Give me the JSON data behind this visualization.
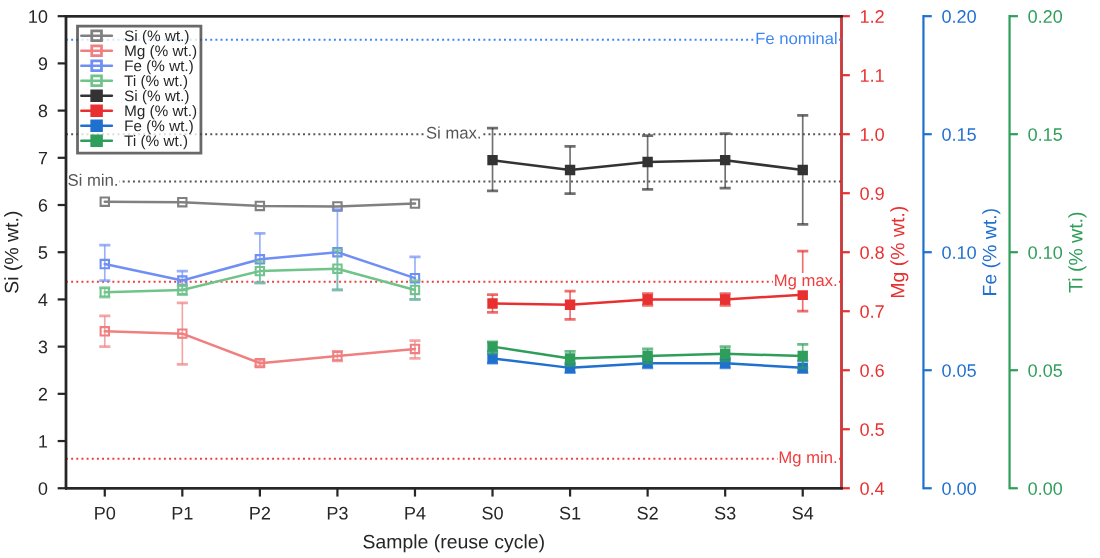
{
  "chart_data": {
    "type": "line",
    "xlabel": "Sample (reuse cycle)",
    "ylabel": "Si (% wt.)",
    "y2label": "Mg (% wt.)",
    "y3label": "Fe (% wt.)",
    "annotations": [
      "Ti (% wt.)"
    ],
    "categories": [
      "P0",
      "P1",
      "P2",
      "P3",
      "P4",
      "S0",
      "S1",
      "S2",
      "S3",
      "S4"
    ],
    "ylim": [
      0,
      10
    ],
    "yticks": [
      0,
      1,
      2,
      3,
      4,
      5,
      6,
      7,
      8,
      9,
      10
    ],
    "y2lim": [
      0.4,
      1.2
    ],
    "y2ticks": [
      {
        "value": 0.4,
        "label": "0.4"
      },
      {
        "value": 0.5,
        "label": "0.5"
      },
      {
        "value": 0.6,
        "label": "0.6"
      },
      {
        "value": 0.7,
        "label": "0.7"
      },
      {
        "value": 0.8,
        "label": "0.8"
      },
      {
        "value": 0.9,
        "label": "0.9"
      },
      {
        "value": 1.0,
        "label": "1.0"
      },
      {
        "value": 1.1,
        "label": "1.1"
      },
      {
        "value": 1.2,
        "label": "1.2"
      }
    ],
    "y3lim": [
      0,
      0.2
    ],
    "y3ticks": [
      {
        "value": 0,
        "label": "0.00"
      },
      {
        "value": 0.05,
        "label": "0.05"
      },
      {
        "value": 0.1,
        "label": "0.10"
      },
      {
        "value": 0.15,
        "label": "0.15"
      },
      {
        "value": 0.2,
        "label": "0.20"
      }
    ],
    "marker": "square",
    "legend": "top left",
    "grid": false,
    "series": [
      {
        "name": "Si (% wt.)",
        "color": "#808080",
        "axis": "y",
        "values": [
          6.07,
          6.06,
          5.98,
          5.97,
          6.03,
          null,
          null,
          null,
          null,
          null
        ]
      },
      {
        "name": "Mg (% wt.)",
        "color": "#f08080",
        "axis": "y2",
        "values": [
          0.666,
          0.662,
          0.612,
          0.624,
          0.636,
          null,
          null,
          null,
          null,
          null
        ],
        "errors": [
          [
            0.64,
            0.692
          ],
          [
            0.61,
            0.714
          ],
          [
            0.607,
            0.617
          ],
          [
            0.616,
            0.632
          ],
          [
            0.62,
            0.65
          ],
          null,
          null,
          null,
          null,
          null
        ]
      },
      {
        "name": "Fe (% wt.)",
        "color": "#6f8ff5",
        "axis": "y3",
        "values": [
          0.095,
          0.088,
          0.097,
          0.1,
          0.089,
          null,
          null,
          null,
          null,
          null
        ],
        "errors": [
          [
            0.088,
            0.103
          ],
          [
            0.084,
            0.092
          ],
          [
            0.087,
            0.108
          ],
          [
            0.084,
            0.118
          ],
          [
            0.08,
            0.098
          ],
          null,
          null,
          null,
          null,
          null
        ]
      },
      {
        "name": "Ti (% wt.)",
        "color": "#70c48a",
        "axis": "y3",
        "values": [
          0.083,
          0.084,
          0.092,
          0.093,
          0.084,
          null,
          null,
          null,
          null,
          null
        ],
        "errors": [
          [
            0.081,
            0.085
          ],
          [
            0.082,
            0.086
          ],
          [
            0.087,
            0.096
          ],
          [
            0.084,
            0.101
          ],
          [
            0.08,
            0.088
          ],
          null,
          null,
          null,
          null,
          null
        ]
      },
      {
        "name": "Si (% wt.)",
        "color": "#333333",
        "axis": "y",
        "values": [
          null,
          null,
          null,
          null,
          null,
          6.95,
          6.74,
          6.91,
          6.95,
          6.74
        ],
        "errors": [
          null,
          null,
          null,
          null,
          null,
          [
            6.3,
            7.63
          ],
          [
            6.24,
            7.24
          ],
          [
            6.33,
            7.47
          ],
          [
            6.36,
            7.51
          ],
          [
            5.59,
            7.9
          ]
        ]
      },
      {
        "name": "Mg (% wt.)",
        "color": "#e83030",
        "axis": "y2",
        "values": [
          null,
          null,
          null,
          null,
          null,
          0.713,
          0.711,
          0.72,
          0.72,
          0.728
        ],
        "errors": [
          null,
          null,
          null,
          null,
          null,
          [
            0.698,
            0.728
          ],
          [
            0.686,
            0.734
          ],
          [
            0.71,
            0.73
          ],
          [
            0.71,
            0.73
          ],
          [
            0.7,
            0.802
          ]
        ]
      },
      {
        "name": "Fe (% wt.)",
        "color": "#2070d0",
        "axis": "y3",
        "values": [
          null,
          null,
          null,
          null,
          null,
          0.055,
          0.051,
          0.053,
          0.053,
          0.051
        ],
        "errors": [
          null,
          null,
          null,
          null,
          null,
          [
            0.053,
            0.058
          ],
          [
            0.049,
            0.053
          ],
          [
            0.051,
            0.055
          ],
          [
            0.051,
            0.055
          ],
          [
            0.049,
            0.054
          ]
        ]
      },
      {
        "name": "Ti (% wt.)",
        "color": "#2e9e5a",
        "axis": "y3",
        "values": [
          null,
          null,
          null,
          null,
          null,
          0.06,
          0.055,
          0.056,
          0.057,
          0.056
        ],
        "errors": [
          null,
          null,
          null,
          null,
          null,
          [
            0.057,
            0.062
          ],
          [
            0.052,
            0.058
          ],
          [
            0.053,
            0.059
          ],
          [
            0.054,
            0.06
          ],
          [
            0.051,
            0.061
          ]
        ]
      }
    ],
    "ref_lines": [
      {
        "axis": "y",
        "value": 6.5,
        "label": "Si min.",
        "color": "#555555",
        "line_style": "dotted"
      },
      {
        "axis": "y",
        "value": 7.5,
        "label": "Si max.",
        "color": "#555555",
        "line_style": "dotted"
      },
      {
        "axis": "y3",
        "value": 0.19,
        "label": "Fe nominal",
        "color": "#3d85f5",
        "line_style": "dotted"
      },
      {
        "axis": "y2",
        "value": 0.75,
        "label": "Mg max.",
        "color": "#f03c3c",
        "line_style": "dotted"
      },
      {
        "axis": "y2",
        "value": 0.45,
        "label": "Mg min.",
        "color": "#f03c3c",
        "line_style": "dotted"
      }
    ]
  }
}
